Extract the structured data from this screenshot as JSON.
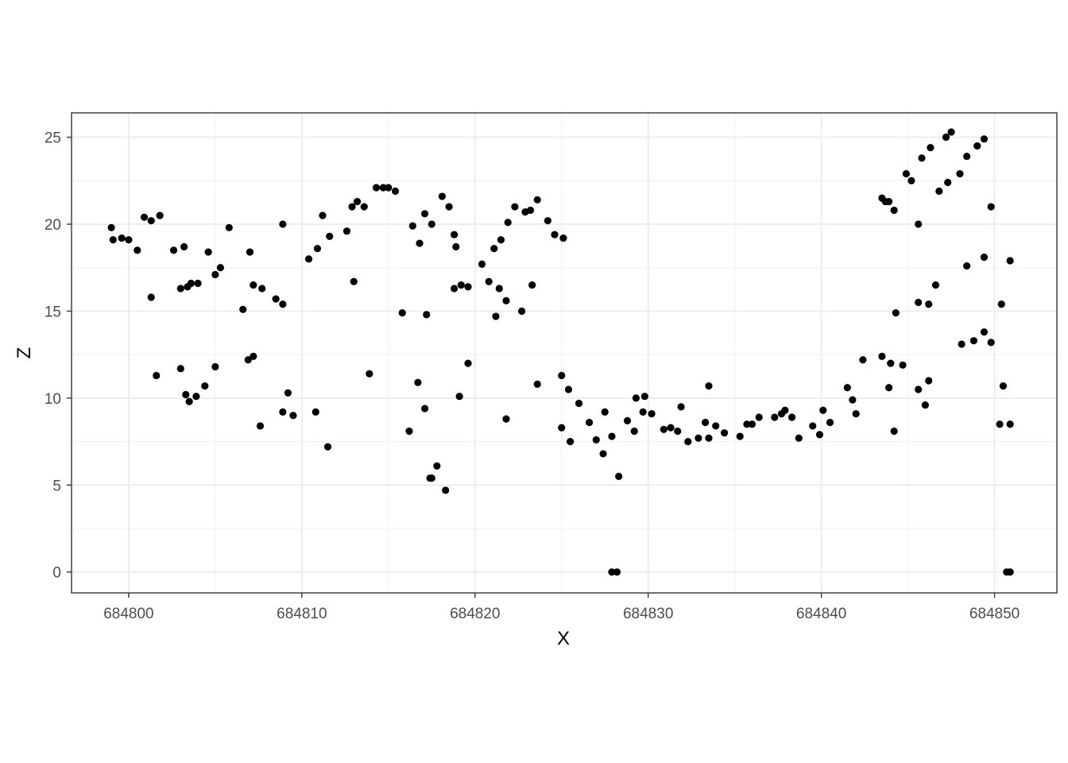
{
  "chart_data": {
    "type": "scatter",
    "title": "",
    "xlabel": "X",
    "ylabel": "Z",
    "xlim": [
      684796.7,
      684853.6
    ],
    "ylim": [
      -1.2,
      26.4
    ],
    "x_ticks": [
      684800,
      684810,
      684820,
      684830,
      684840,
      684850
    ],
    "y_ticks": [
      0,
      5,
      10,
      15,
      20,
      25
    ],
    "grid": true,
    "legend": "none",
    "point_color": "#000000",
    "points": [
      [
        684799.0,
        19.8
      ],
      [
        684799.1,
        19.1
      ],
      [
        684799.6,
        19.2
      ],
      [
        684800.0,
        19.1
      ],
      [
        684800.5,
        18.5
      ],
      [
        684800.9,
        20.4
      ],
      [
        684801.3,
        20.2
      ],
      [
        684801.3,
        15.8
      ],
      [
        684801.6,
        11.3
      ],
      [
        684801.8,
        20.5
      ],
      [
        684802.6,
        18.5
      ],
      [
        684803.0,
        11.7
      ],
      [
        684803.0,
        16.3
      ],
      [
        684803.2,
        18.7
      ],
      [
        684803.3,
        10.2
      ],
      [
        684803.4,
        16.4
      ],
      [
        684803.5,
        9.8
      ],
      [
        684803.6,
        16.6
      ],
      [
        684803.9,
        10.1
      ],
      [
        684804.0,
        16.6
      ],
      [
        684804.4,
        10.7
      ],
      [
        684804.6,
        18.4
      ],
      [
        684805.0,
        11.8
      ],
      [
        684805.0,
        17.1
      ],
      [
        684805.3,
        17.5
      ],
      [
        684805.8,
        19.8
      ],
      [
        684806.6,
        15.1
      ],
      [
        684806.9,
        12.2
      ],
      [
        684807.0,
        18.4
      ],
      [
        684807.2,
        12.4
      ],
      [
        684807.2,
        16.5
      ],
      [
        684807.6,
        8.4
      ],
      [
        684807.7,
        16.3
      ],
      [
        684808.5,
        15.7
      ],
      [
        684808.9,
        9.2
      ],
      [
        684808.9,
        15.4
      ],
      [
        684808.9,
        20.0
      ],
      [
        684809.2,
        10.3
      ],
      [
        684809.5,
        9.0
      ],
      [
        684810.4,
        18.0
      ],
      [
        684810.8,
        9.2
      ],
      [
        684810.9,
        18.6
      ],
      [
        684811.2,
        20.5
      ],
      [
        684811.5,
        7.2
      ],
      [
        684811.6,
        19.3
      ],
      [
        684812.6,
        19.6
      ],
      [
        684812.9,
        21.0
      ],
      [
        684813.0,
        16.7
      ],
      [
        684813.2,
        21.3
      ],
      [
        684813.6,
        21.0
      ],
      [
        684813.9,
        11.4
      ],
      [
        684814.3,
        22.1
      ],
      [
        684814.7,
        22.1
      ],
      [
        684815.0,
        22.1
      ],
      [
        684815.4,
        21.9
      ],
      [
        684815.8,
        14.9
      ],
      [
        684816.2,
        8.1
      ],
      [
        684816.4,
        19.9
      ],
      [
        684816.7,
        10.9
      ],
      [
        684816.8,
        18.9
      ],
      [
        684817.1,
        9.4
      ],
      [
        684817.1,
        20.6
      ],
      [
        684817.2,
        14.8
      ],
      [
        684817.4,
        5.4
      ],
      [
        684817.5,
        5.4
      ],
      [
        684817.5,
        20.0
      ],
      [
        684817.8,
        6.1
      ],
      [
        684818.1,
        21.6
      ],
      [
        684818.3,
        4.7
      ],
      [
        684818.5,
        21.0
      ],
      [
        684818.8,
        16.3
      ],
      [
        684818.8,
        19.4
      ],
      [
        684818.9,
        18.7
      ],
      [
        684819.1,
        10.1
      ],
      [
        684819.2,
        16.5
      ],
      [
        684819.6,
        12.0
      ],
      [
        684819.6,
        16.4
      ],
      [
        684820.4,
        17.7
      ],
      [
        684820.8,
        16.7
      ],
      [
        684821.1,
        18.6
      ],
      [
        684821.2,
        14.7
      ],
      [
        684821.4,
        16.3
      ],
      [
        684821.5,
        19.1
      ],
      [
        684821.8,
        8.8
      ],
      [
        684821.8,
        15.6
      ],
      [
        684821.9,
        20.1
      ],
      [
        684822.3,
        21.0
      ],
      [
        684822.7,
        15.0
      ],
      [
        684822.9,
        20.7
      ],
      [
        684823.2,
        20.8
      ],
      [
        684823.3,
        16.5
      ],
      [
        684823.6,
        10.8
      ],
      [
        684823.6,
        21.4
      ],
      [
        684824.2,
        20.2
      ],
      [
        684824.6,
        19.4
      ],
      [
        684825.0,
        8.3
      ],
      [
        684825.0,
        11.3
      ],
      [
        684825.1,
        19.2
      ],
      [
        684825.4,
        10.5
      ],
      [
        684825.5,
        7.5
      ],
      [
        684826.0,
        9.7
      ],
      [
        684826.6,
        8.6
      ],
      [
        684827.0,
        7.6
      ],
      [
        684827.4,
        6.8
      ],
      [
        684827.5,
        9.2
      ],
      [
        684827.9,
        0.0
      ],
      [
        684827.9,
        7.8
      ],
      [
        684828.2,
        0.0
      ],
      [
        684828.3,
        5.5
      ],
      [
        684828.8,
        8.7
      ],
      [
        684829.2,
        8.1
      ],
      [
        684829.3,
        10.0
      ],
      [
        684829.7,
        9.2
      ],
      [
        684829.8,
        10.1
      ],
      [
        684830.2,
        9.1
      ],
      [
        684830.9,
        8.2
      ],
      [
        684831.3,
        8.3
      ],
      [
        684831.7,
        8.1
      ],
      [
        684831.9,
        9.5
      ],
      [
        684832.3,
        7.5
      ],
      [
        684832.9,
        7.7
      ],
      [
        684833.3,
        8.6
      ],
      [
        684833.5,
        10.7
      ],
      [
        684833.5,
        7.7
      ],
      [
        684833.9,
        8.4
      ],
      [
        684834.4,
        8.0
      ],
      [
        684835.3,
        7.8
      ],
      [
        684835.7,
        8.5
      ],
      [
        684836.0,
        8.5
      ],
      [
        684836.4,
        8.9
      ],
      [
        684837.3,
        8.9
      ],
      [
        684837.7,
        9.1
      ],
      [
        684837.9,
        9.3
      ],
      [
        684838.3,
        8.9
      ],
      [
        684838.7,
        7.7
      ],
      [
        684839.5,
        8.4
      ],
      [
        684839.9,
        7.9
      ],
      [
        684840.1,
        9.3
      ],
      [
        684840.5,
        8.6
      ],
      [
        684841.5,
        10.6
      ],
      [
        684841.8,
        9.9
      ],
      [
        684842.0,
        9.1
      ],
      [
        684842.4,
        12.2
      ],
      [
        684843.5,
        12.4
      ],
      [
        684843.5,
        21.5
      ],
      [
        684843.7,
        21.3
      ],
      [
        684843.9,
        10.6
      ],
      [
        684843.9,
        21.3
      ],
      [
        684844.0,
        12.0
      ],
      [
        684844.2,
        8.1
      ],
      [
        684844.2,
        20.8
      ],
      [
        684844.3,
        14.9
      ],
      [
        684844.7,
        11.9
      ],
      [
        684844.9,
        22.9
      ],
      [
        684845.2,
        22.5
      ],
      [
        684845.6,
        10.5
      ],
      [
        684845.6,
        15.5
      ],
      [
        684845.6,
        20.0
      ],
      [
        684845.8,
        23.8
      ],
      [
        684846.0,
        9.6
      ],
      [
        684846.2,
        11.0
      ],
      [
        684846.2,
        15.4
      ],
      [
        684846.3,
        24.4
      ],
      [
        684846.6,
        16.5
      ],
      [
        684846.8,
        21.9
      ],
      [
        684847.2,
        25.0
      ],
      [
        684847.3,
        22.4
      ],
      [
        684847.5,
        25.3
      ],
      [
        684848.0,
        22.9
      ],
      [
        684848.1,
        13.1
      ],
      [
        684848.4,
        17.6
      ],
      [
        684848.4,
        23.9
      ],
      [
        684848.8,
        13.3
      ],
      [
        684849.0,
        24.5
      ],
      [
        684849.4,
        13.8
      ],
      [
        684849.4,
        18.1
      ],
      [
        684849.4,
        24.9
      ],
      [
        684849.8,
        13.2
      ],
      [
        684849.8,
        21.0
      ],
      [
        684850.3,
        8.5
      ],
      [
        684850.4,
        15.4
      ],
      [
        684850.5,
        10.7
      ],
      [
        684850.7,
        0.0
      ],
      [
        684850.9,
        0.0
      ],
      [
        684850.9,
        17.9
      ],
      [
        684850.9,
        8.5
      ]
    ]
  }
}
